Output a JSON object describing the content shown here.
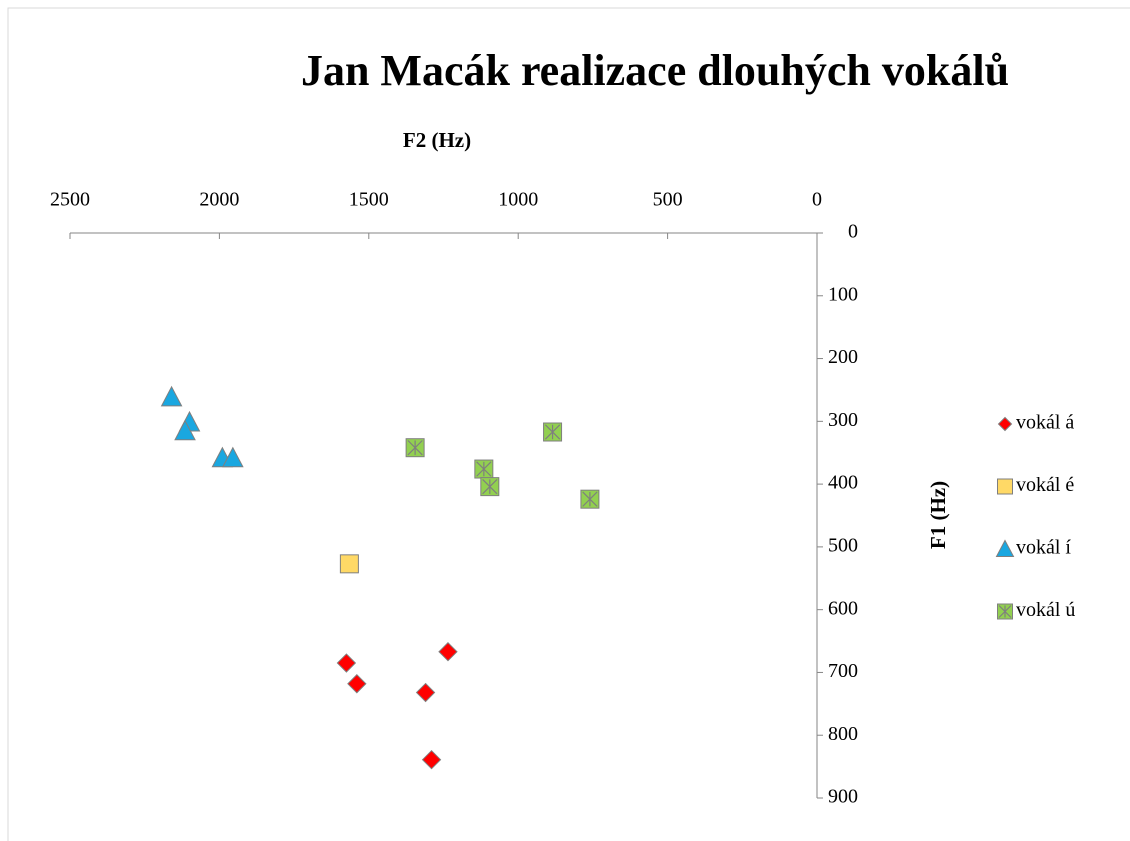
{
  "chart_data": {
    "type": "scatter",
    "title": "Jan Macák realizace dlouhých vokálů",
    "x_label": "F2 (Hz)",
    "y_label": "F1 (Hz)",
    "xlim": [
      2500,
      0
    ],
    "xticks": [
      2500,
      2000,
      1500,
      1000,
      500,
      0
    ],
    "ylim": [
      0,
      900
    ],
    "yticks": [
      0,
      100,
      200,
      300,
      400,
      500,
      600,
      700,
      800,
      900
    ],
    "x_reversed": true,
    "y_reversed": true,
    "x_axis_position": "top",
    "y_axis_position": "right",
    "legend": "right",
    "grid": false,
    "series": [
      {
        "name": "vokál á",
        "color": "#ff0000",
        "marker": "diamond",
        "x": [
          1575,
          1540,
          1235,
          1310,
          1290
        ],
        "values": [
          685,
          718,
          667,
          732,
          839
        ]
      },
      {
        "name": "vokál é",
        "color": "#ffd966",
        "marker": "square",
        "x": [
          1565
        ],
        "values": [
          527
        ]
      },
      {
        "name": "vokál í",
        "color": "#1aa7e0",
        "marker": "triangle",
        "x": [
          2160,
          2100,
          2115,
          1990,
          1955
        ],
        "values": [
          261,
          301,
          315,
          358,
          358
        ]
      },
      {
        "name": "vokál ú",
        "color": "#92d050",
        "marker": "xsquare",
        "x": [
          1345,
          1115,
          1095,
          885,
          760
        ],
        "values": [
          342,
          376,
          404,
          317,
          424
        ]
      }
    ]
  }
}
